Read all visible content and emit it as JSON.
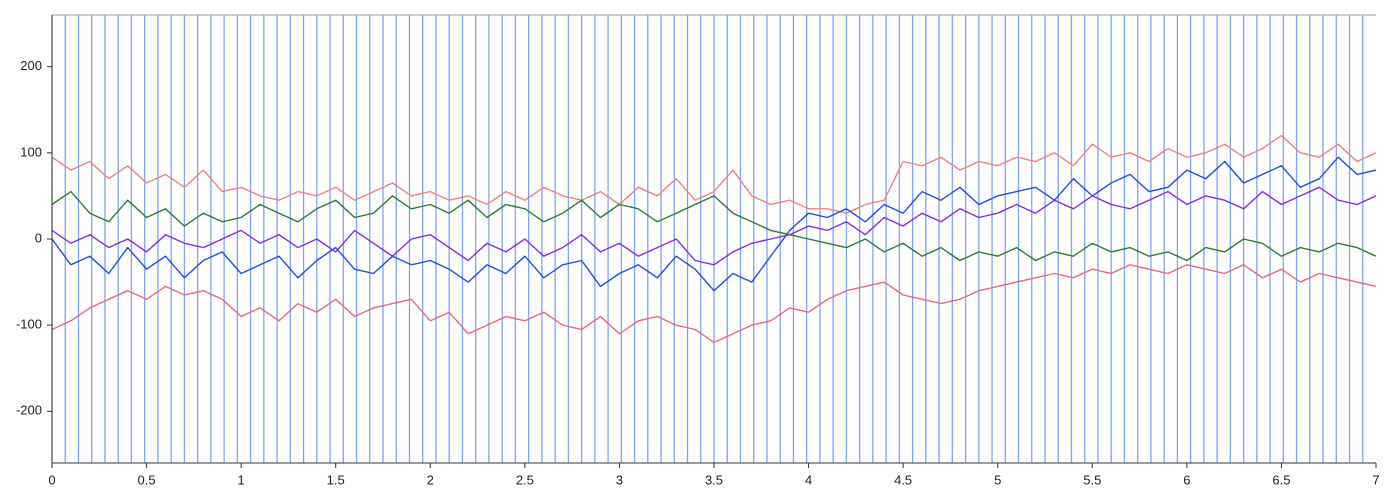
{
  "chart_data": {
    "type": "line",
    "xlim": [
      0,
      7
    ],
    "ylim": [
      -260,
      260
    ],
    "xticks": [
      0,
      0.5,
      1,
      1.5,
      2,
      2.5,
      3,
      3.5,
      4,
      4.5,
      5,
      5.5,
      6,
      6.5,
      7
    ],
    "yticks": [
      -200,
      -100,
      0,
      100,
      200
    ],
    "markers": {
      "color": "#7aa6f2",
      "x": [
        0,
        0.07,
        0.14,
        0.21,
        0.28,
        0.35,
        0.42,
        0.49,
        0.56,
        0.63,
        0.7,
        0.77,
        0.84,
        0.91,
        0.98,
        1.05,
        1.12,
        1.19,
        1.26,
        1.33,
        1.4,
        1.47,
        1.54,
        1.61,
        1.68,
        1.75,
        1.82,
        1.89,
        1.96,
        2.03,
        2.1,
        2.17,
        2.24,
        2.31,
        2.38,
        2.45,
        2.52,
        2.59,
        2.66,
        2.73,
        2.8,
        2.87,
        2.94,
        3.01,
        3.08,
        3.15,
        3.22,
        3.29,
        3.36,
        3.43,
        3.5,
        3.57,
        3.64,
        3.71,
        3.78,
        3.85,
        3.92,
        3.99,
        4.06,
        4.13,
        4.2,
        4.27,
        4.34,
        4.41,
        4.48,
        4.55,
        4.62,
        4.69,
        4.76,
        4.83,
        4.9,
        4.97,
        5.04,
        5.11,
        5.18,
        5.25,
        5.32,
        5.39,
        5.46,
        5.53,
        5.6,
        5.67,
        5.74,
        5.81,
        5.88,
        5.95,
        6.02,
        6.09,
        6.16,
        6.23,
        6.3,
        6.37,
        6.44,
        6.51,
        6.58,
        6.65,
        6.72,
        6.79,
        6.86,
        6.93
      ]
    },
    "x": [
      0,
      0.1,
      0.2,
      0.3,
      0.4,
      0.5,
      0.6,
      0.7,
      0.8,
      0.9,
      1,
      1.1,
      1.2,
      1.3,
      1.4,
      1.5,
      1.6,
      1.7,
      1.8,
      1.9,
      2,
      2.1,
      2.2,
      2.3,
      2.4,
      2.5,
      2.6,
      2.7,
      2.8,
      2.9,
      3,
      3.1,
      3.2,
      3.3,
      3.4,
      3.5,
      3.6,
      3.7,
      3.8,
      3.9,
      4,
      4.1,
      4.2,
      4.3,
      4.4,
      4.5,
      4.6,
      4.7,
      4.8,
      4.9,
      5,
      5.1,
      5.2,
      5.3,
      5.4,
      5.5,
      5.6,
      5.7,
      5.8,
      5.9,
      6,
      6.1,
      6.2,
      6.3,
      6.4,
      6.5,
      6.6,
      6.7,
      6.8,
      6.9,
      7
    ],
    "series": [
      {
        "color": "#f08080",
        "values": [
          95,
          80,
          90,
          70,
          85,
          65,
          75,
          60,
          80,
          55,
          60,
          50,
          45,
          55,
          50,
          60,
          45,
          55,
          65,
          50,
          55,
          45,
          50,
          40,
          55,
          45,
          60,
          50,
          45,
          55,
          40,
          60,
          50,
          70,
          45,
          55,
          80,
          50,
          40,
          45,
          35,
          35,
          30,
          40,
          45,
          90,
          85,
          95,
          80,
          90,
          85,
          95,
          90,
          100,
          85,
          110,
          95,
          100,
          90,
          105,
          95,
          100,
          110,
          95,
          105,
          120,
          100,
          95,
          110,
          90,
          100
        ]
      },
      {
        "color": "#e8697a",
        "values": [
          -105,
          -95,
          -80,
          -70,
          -60,
          -70,
          -55,
          -65,
          -60,
          -70,
          -90,
          -80,
          -95,
          -75,
          -85,
          -70,
          -90,
          -80,
          -75,
          -70,
          -95,
          -85,
          -110,
          -100,
          -90,
          -95,
          -85,
          -100,
          -105,
          -90,
          -110,
          -95,
          -90,
          -100,
          -105,
          -120,
          -110,
          -100,
          -95,
          -80,
          -85,
          -70,
          -60,
          -55,
          -50,
          -65,
          -70,
          -75,
          -70,
          -60,
          -55,
          -50,
          -45,
          -40,
          -45,
          -35,
          -40,
          -30,
          -35,
          -40,
          -30,
          -35,
          -40,
          -30,
          -45,
          -35,
          -50,
          -40,
          -45,
          -50,
          -55
        ]
      },
      {
        "color": "#2e7d32",
        "values": [
          40,
          55,
          30,
          20,
          45,
          25,
          35,
          15,
          30,
          20,
          25,
          40,
          30,
          20,
          35,
          45,
          25,
          30,
          50,
          35,
          40,
          30,
          45,
          25,
          40,
          35,
          20,
          30,
          45,
          25,
          40,
          35,
          20,
          30,
          40,
          50,
          30,
          20,
          10,
          5,
          0,
          -5,
          -10,
          0,
          -15,
          -5,
          -20,
          -10,
          -25,
          -15,
          -20,
          -10,
          -25,
          -15,
          -20,
          -5,
          -15,
          -10,
          -20,
          -15,
          -25,
          -10,
          -15,
          0,
          -5,
          -20,
          -10,
          -15,
          -5,
          -10,
          -20
        ]
      },
      {
        "color": "#1f4fe0",
        "values": [
          0,
          -30,
          -20,
          -40,
          -10,
          -35,
          -20,
          -45,
          -25,
          -15,
          -40,
          -30,
          -20,
          -45,
          -25,
          -10,
          -35,
          -40,
          -20,
          -30,
          -25,
          -35,
          -50,
          -30,
          -40,
          -20,
          -45,
          -30,
          -25,
          -55,
          -40,
          -30,
          -45,
          -20,
          -35,
          -60,
          -40,
          -50,
          -20,
          10,
          30,
          25,
          35,
          20,
          40,
          30,
          55,
          45,
          60,
          40,
          50,
          55,
          60,
          45,
          70,
          50,
          65,
          75,
          55,
          60,
          80,
          70,
          90,
          65,
          75,
          85,
          60,
          70,
          95,
          75,
          80
        ]
      },
      {
        "color": "#8a2be2",
        "values": [
          10,
          -5,
          5,
          -10,
          0,
          -15,
          5,
          -5,
          -10,
          0,
          10,
          -5,
          5,
          -10,
          0,
          -15,
          10,
          -5,
          -20,
          0,
          5,
          -10,
          -25,
          -5,
          -15,
          0,
          -20,
          -10,
          5,
          -15,
          -5,
          -20,
          -10,
          0,
          -25,
          -30,
          -15,
          -5,
          0,
          5,
          15,
          10,
          20,
          5,
          25,
          15,
          30,
          20,
          35,
          25,
          30,
          40,
          30,
          45,
          35,
          50,
          40,
          35,
          45,
          55,
          40,
          50,
          45,
          35,
          55,
          40,
          50,
          60,
          45,
          40,
          50
        ]
      }
    ]
  }
}
